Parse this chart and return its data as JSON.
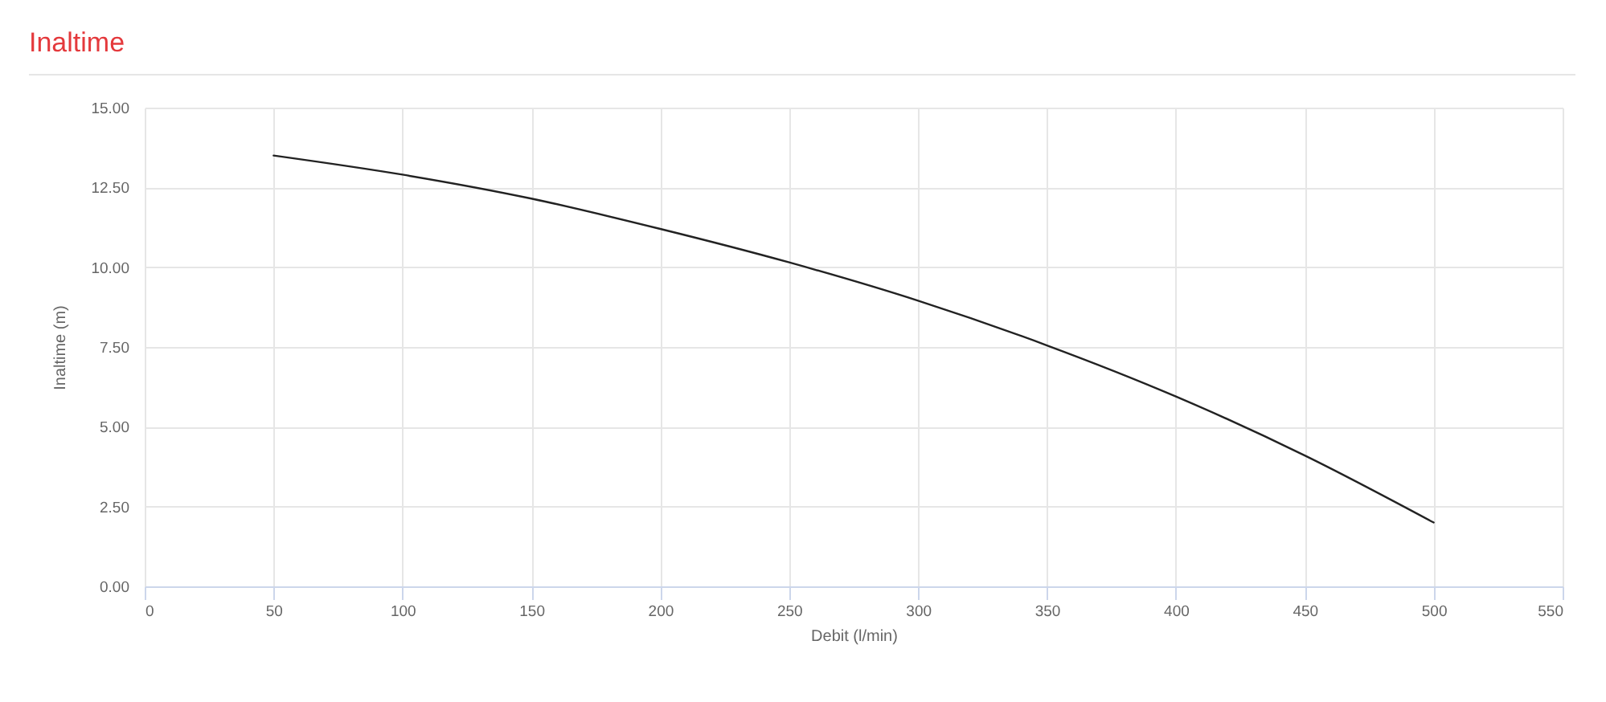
{
  "chart_data": {
    "type": "line",
    "title": "Inaltime",
    "xlabel": "Debit (l/min)",
    "ylabel": "Inaltime (m)",
    "x": [
      50,
      100,
      150,
      200,
      250,
      300,
      350,
      400,
      450,
      500
    ],
    "series": [
      {
        "color": "#222222",
        "values": [
          13.5,
          12.9,
          12.15,
          11.2,
          10.15,
          8.95,
          7.55,
          5.95,
          4.1,
          2.0
        ]
      }
    ],
    "xlim": [
      0,
      550
    ],
    "xticks": [
      0,
      50,
      100,
      150,
      200,
      250,
      300,
      350,
      400,
      450,
      500,
      550
    ],
    "ylim": [
      0,
      15
    ],
    "yticks": [
      {
        "value": 0,
        "label": "0.00"
      },
      {
        "value": 2.5,
        "label": "2.50"
      },
      {
        "value": 5,
        "label": "5.00"
      },
      {
        "value": 7.5,
        "label": "7.50"
      },
      {
        "value": 10,
        "label": "10.00"
      },
      {
        "value": 12.5,
        "label": "12.50"
      },
      {
        "value": 15,
        "label": "15.00"
      }
    ],
    "grid": true,
    "line_style": "solid"
  }
}
